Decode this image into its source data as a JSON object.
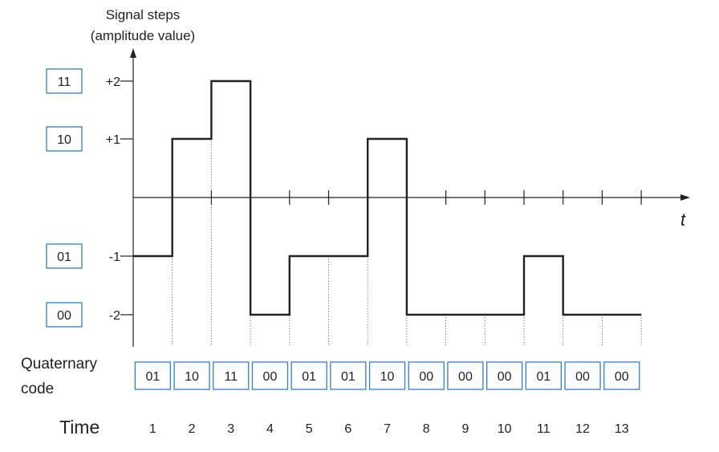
{
  "y_axis_title": [
    "Signal steps",
    "(amplitude value)"
  ],
  "t_axis_label": "t",
  "levels": [
    {
      "code": "11",
      "label": "+2",
      "value": 2
    },
    {
      "code": "10",
      "label": "+1",
      "value": 1
    },
    {
      "code": "01",
      "label": "-1",
      "value": -1
    },
    {
      "code": "00",
      "label": "-2",
      "value": -2
    }
  ],
  "quaternary_label": [
    "Quaternary",
    "code"
  ],
  "time_label": "Time",
  "samples": [
    {
      "time": "1",
      "code": "01",
      "value": -1
    },
    {
      "time": "2",
      "code": "10",
      "value": 1
    },
    {
      "time": "3",
      "code": "11",
      "value": 2
    },
    {
      "time": "4",
      "code": "00",
      "value": -2
    },
    {
      "time": "5",
      "code": "01",
      "value": -1
    },
    {
      "time": "6",
      "code": "01",
      "value": -1
    },
    {
      "time": "7",
      "code": "10",
      "value": 1
    },
    {
      "time": "8",
      "code": "00",
      "value": -2
    },
    {
      "time": "9",
      "code": "00",
      "value": -2
    },
    {
      "time": "10",
      "code": "00",
      "value": -2
    },
    {
      "time": "11",
      "code": "01",
      "value": -1
    },
    {
      "time": "12",
      "code": "00",
      "value": -2
    },
    {
      "time": "13",
      "code": "00",
      "value": -2
    }
  ],
  "colors": {
    "code_box_border": "#2f80c8",
    "signal": "#222222"
  }
}
